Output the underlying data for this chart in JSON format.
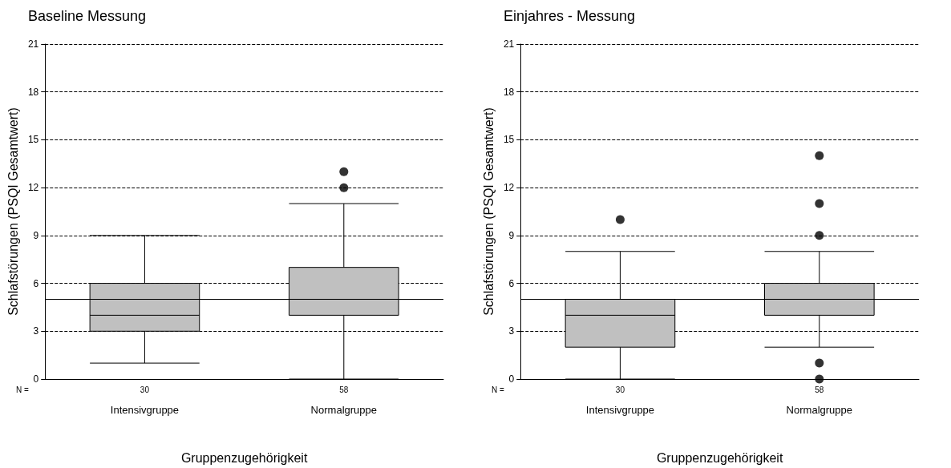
{
  "chart_data": [
    {
      "type": "box",
      "title": "Baseline Messung",
      "xlabel": "Gruppenzugehörigkeit",
      "ylabel": "Schlafstörungen (PSQI Gesamtwert)",
      "categories": [
        "Intensivgruppe",
        "Normalgruppe"
      ],
      "boxes": [
        {
          "low": 1,
          "q1": 3,
          "median": 4,
          "q3": 6,
          "high": 9
        },
        {
          "low": 0,
          "q1": 4,
          "median": 5,
          "q3": 7,
          "high": 11,
          "outliers": [
            12,
            13
          ]
        }
      ],
      "color": "#c0c0c0",
      "ylim": [
        0,
        21
      ],
      "yticks": [
        0,
        3,
        6,
        9,
        12,
        15,
        18,
        21
      ],
      "grid": "y",
      "marker": "circle",
      "ref_lines": [
        {
          "axis": "y",
          "value": 5
        }
      ],
      "annotations": [
        "N =",
        "30",
        "58"
      ]
    },
    {
      "type": "box",
      "title": "Einjahres - Messung",
      "xlabel": "Gruppenzugehörigkeit",
      "ylabel": "Schlafstörungen (PSQI Gesamtwert)",
      "categories": [
        "Intensivgruppe",
        "Normalgruppe"
      ],
      "boxes": [
        {
          "low": 0,
          "q1": 2,
          "median": 4,
          "q3": 5,
          "high": 8,
          "outliers": [
            10
          ]
        },
        {
          "low": 2,
          "q1": 4,
          "median": 5,
          "q3": 6,
          "high": 8,
          "outliers": [
            0,
            1,
            9,
            11,
            14
          ]
        }
      ],
      "color": "#c0c0c0",
      "ylim": [
        0,
        21
      ],
      "yticks": [
        0,
        3,
        6,
        9,
        12,
        15,
        18,
        21
      ],
      "grid": "y",
      "marker": "circle",
      "ref_lines": [
        {
          "axis": "y",
          "value": 5
        }
      ],
      "annotations": [
        "N =",
        "30",
        "58"
      ]
    }
  ]
}
